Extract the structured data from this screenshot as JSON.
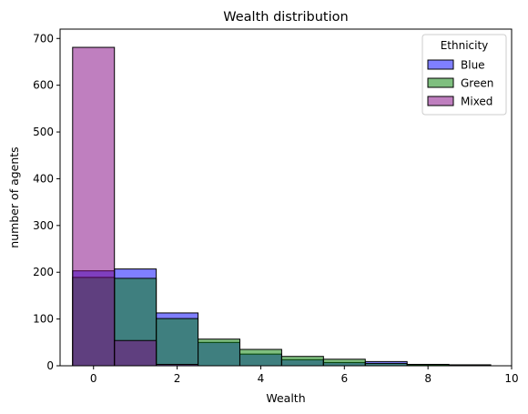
{
  "chart_data": {
    "type": "bar",
    "title": "Wealth distribution",
    "xlabel": "Wealth",
    "ylabel": "number of agents",
    "xlim": [
      -0.8,
      10.0
    ],
    "ylim": [
      0,
      720
    ],
    "xticks": [
      0,
      2,
      4,
      6,
      8,
      10
    ],
    "yticks": [
      0,
      100,
      200,
      300,
      400,
      500,
      600,
      700
    ],
    "bin_edges": [
      -0.5,
      0.5,
      1.5,
      2.5,
      3.5,
      4.5,
      5.5,
      6.5,
      7.5,
      8.5,
      9.5
    ],
    "legend": {
      "title": "Ethnicity",
      "position": "top-right"
    },
    "series": [
      {
        "name": "Blue",
        "color": "#0000ff",
        "values": [
          203,
          207,
          113,
          50,
          25,
          13,
          7,
          9,
          2,
          2
        ]
      },
      {
        "name": "Green",
        "color": "#008000",
        "values": [
          189,
          187,
          101,
          57,
          35,
          20,
          14,
          5,
          3,
          2
        ]
      },
      {
        "name": "Mixed",
        "color": "#800080",
        "values": [
          681,
          54,
          3,
          0,
          0,
          0,
          0,
          0,
          0,
          0
        ]
      }
    ],
    "grid": false
  }
}
